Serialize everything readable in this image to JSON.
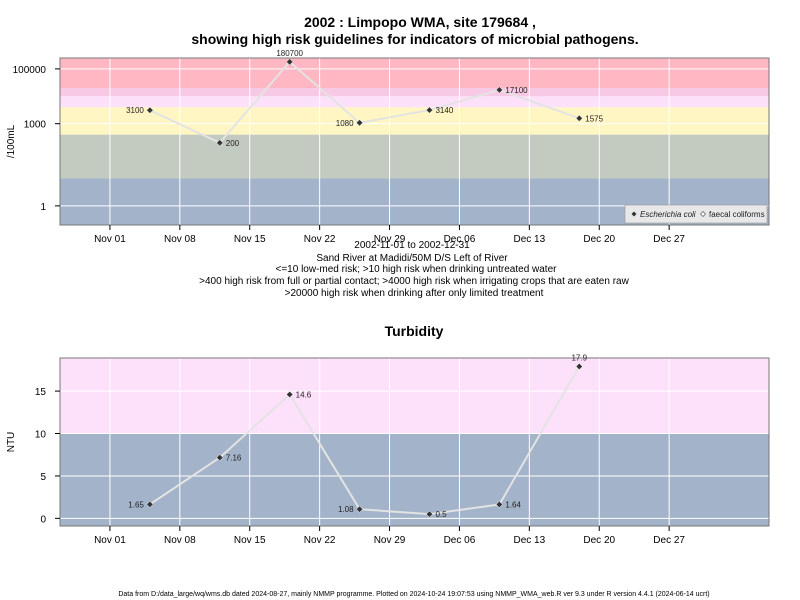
{
  "title_line1": "2002 : Limpopo WMA, site 179684 ,",
  "title_line2": "showing high risk guidelines for indicators of microbial pathogens.",
  "subtitle_lines": [
    "2002-11-01 to 2002-12-31",
    "Sand River at Madidi/50M D/S Left of River",
    "<=10 low-med risk; >10 high risk when drinking untreated water",
    ">400 high risk from full or partial contact; >4000 high risk when irrigating crops that are eaten raw",
    ">20000 high risk when drinking after only limited treatment"
  ],
  "footer": "Data from D:/data_large/wq/wms.db dated 2024-08-27, mainly NMMP programme. Plotted on 2024-10-24 19:07:53 using NMMP_WMA_web.R ver 9.3 under R version 4.4.1 (2024-06-14 ucrt)",
  "colors": {
    "band_blue": "#a3b3ca",
    "band_green": "#c3cbc1",
    "band_yellow": "#fff6c4",
    "band_pink_light": "#fde1fb",
    "band_pink_mid": "#f8c9e4",
    "band_red": "#ffb7c4",
    "line": "#e3e3e3",
    "grid": "#ffffff",
    "point": "#333333"
  },
  "chart_data": [
    {
      "type": "line",
      "title": "",
      "ylabel": "/100mL",
      "xlabel": "",
      "yscale": "log",
      "ylim": [
        0.2,
        250000
      ],
      "yticks": [
        1,
        1000,
        100000
      ],
      "ytick_labels": [
        "1",
        "1000",
        "100000"
      ],
      "xlim": [
        "2002-10-27",
        "2003-01-06"
      ],
      "xticks": [
        "2002-11-01",
        "2002-11-08",
        "2002-11-15",
        "2002-11-22",
        "2002-11-29",
        "2002-12-06",
        "2002-12-13",
        "2002-12-20",
        "2002-12-27"
      ],
      "xtick_labels": [
        "Nov 01",
        "Nov 08",
        "Nov 15",
        "Nov 22",
        "Nov 29",
        "Dec 06",
        "Dec 13",
        "Dec 20",
        "Dec 27"
      ],
      "risk_bands": [
        {
          "from": 0.2,
          "to": 10,
          "color": "band_blue"
        },
        {
          "from": 10,
          "to": 400,
          "color": "band_green"
        },
        {
          "from": 400,
          "to": 4000,
          "color": "band_yellow"
        },
        {
          "from": 4000,
          "to": 10000,
          "color": "band_pink_light"
        },
        {
          "from": 10000,
          "to": 20000,
          "color": "band_pink_mid"
        },
        {
          "from": 20000,
          "to": 250000,
          "color": "band_red"
        }
      ],
      "legend": {
        "position": "bottom-right",
        "entries": [
          "Escherichia coli",
          "faecal coliforms"
        ]
      },
      "series": [
        {
          "name": "Escherichia coli",
          "x": [
            "2002-11-05",
            "2002-11-12",
            "2002-11-19",
            "2002-11-26",
            "2002-12-03",
            "2002-12-10",
            "2002-12-18"
          ],
          "values": [
            3100,
            200,
            180700,
            1080,
            3140,
            17100,
            1575
          ],
          "labels": [
            "3100",
            "200",
            "180700",
            "1080",
            "3140",
            "17100",
            "1575"
          ],
          "label_side": [
            "left",
            "right",
            "top",
            "left",
            "right",
            "right",
            "right"
          ]
        }
      ]
    },
    {
      "type": "line",
      "title": "Turbidity",
      "ylabel": "NTU",
      "xlabel": "",
      "yscale": "linear",
      "ylim": [
        -0.9,
        18.9
      ],
      "yticks": [
        0,
        5,
        10,
        15
      ],
      "ytick_labels": [
        "0",
        "5",
        "10",
        "15"
      ],
      "xlim": [
        "2002-10-27",
        "2003-01-06"
      ],
      "xticks": [
        "2002-11-01",
        "2002-11-08",
        "2002-11-15",
        "2002-11-22",
        "2002-11-29",
        "2002-12-06",
        "2002-12-13",
        "2002-12-20",
        "2002-12-27"
      ],
      "xtick_labels": [
        "Nov 01",
        "Nov 08",
        "Nov 15",
        "Nov 22",
        "Nov 29",
        "Dec 06",
        "Dec 13",
        "Dec 20",
        "Dec 27"
      ],
      "risk_bands": [
        {
          "from": -0.9,
          "to": 10,
          "color": "band_blue"
        },
        {
          "from": 10,
          "to": 18.9,
          "color": "band_pink_light"
        }
      ],
      "series": [
        {
          "name": "",
          "x": [
            "2002-11-05",
            "2002-11-12",
            "2002-11-19",
            "2002-11-26",
            "2002-12-03",
            "2002-12-10",
            "2002-12-18"
          ],
          "values": [
            1.65,
            7.16,
            14.6,
            1.08,
            0.5,
            1.64,
            17.9
          ],
          "labels": [
            "1.65",
            "7.16",
            "14.6",
            "1.08",
            "0.5",
            "1.64",
            "17.9"
          ],
          "label_side": [
            "left",
            "right",
            "right",
            "left",
            "right",
            "right",
            "top"
          ]
        }
      ]
    }
  ]
}
